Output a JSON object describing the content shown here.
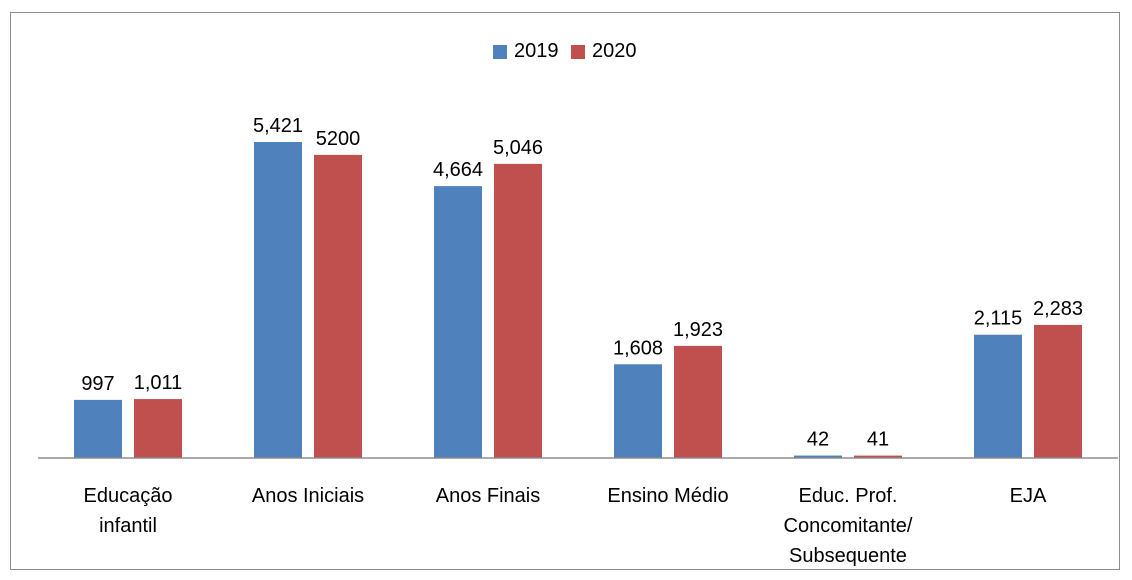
{
  "chart_data": {
    "type": "bar",
    "categories": [
      [
        "Educação",
        "infantil"
      ],
      [
        "Anos Iniciais"
      ],
      [
        "Anos Finais"
      ],
      [
        "Ensino Médio"
      ],
      [
        "Educ. Prof.",
        "Concomitante/",
        "Subsequente"
      ],
      [
        "EJA"
      ]
    ],
    "series": [
      {
        "name": "2019",
        "color": "#4f81bd",
        "values": [
          997,
          5421,
          4664,
          1608,
          42,
          2115
        ],
        "labels": [
          "997",
          "5,421",
          "4,664",
          "1,608",
          "42",
          "2,115"
        ]
      },
      {
        "name": "2020",
        "color": "#c0504d",
        "values": [
          1011,
          5200,
          5046,
          1923,
          41,
          2283
        ],
        "labels": [
          "1,011",
          "5200",
          "5,046",
          "1,923",
          "41",
          "2,283"
        ]
      }
    ],
    "ylim": [
      0,
      5800
    ],
    "grid": false,
    "legend_position": "top-center"
  }
}
